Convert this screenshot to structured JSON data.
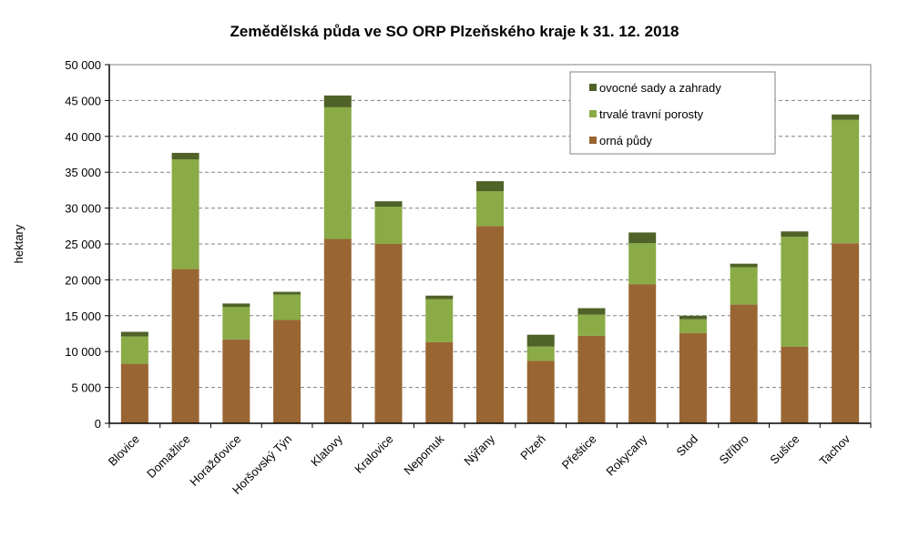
{
  "chart_data": {
    "type": "bar",
    "stacked": true,
    "title": "Zemědělská půda ve SO ORP Plzeňského kraje k 31. 12. 2018",
    "xlabel": "",
    "ylabel": "hektary",
    "ylim": [
      0,
      50000
    ],
    "yticks": [
      0,
      5000,
      10000,
      15000,
      20000,
      25000,
      30000,
      35000,
      40000,
      45000,
      50000
    ],
    "ytick_labels": [
      "0",
      "5 000",
      "10 000",
      "15 000",
      "20 000",
      "25 000",
      "30 000",
      "35 000",
      "40 000",
      "45 000",
      "50 000"
    ],
    "grid": true,
    "legend_position": "top-right",
    "categories": [
      "Blovice",
      "Domažlice",
      "Horažďovice",
      "Horšovský Týn",
      "Klatovy",
      "Kralovice",
      "Nepomuk",
      "Nýřany",
      "Plzeň",
      "Přeštice",
      "Rokycany",
      "Stod",
      "Stříbro",
      "Sušice",
      "Tachov"
    ],
    "series": [
      {
        "name": "orná půdy",
        "color": "#996633",
        "values": [
          8300,
          21500,
          11700,
          14400,
          25700,
          25000,
          11300,
          27500,
          8700,
          12200,
          19400,
          12600,
          16550,
          10700,
          25100
        ]
      },
      {
        "name": "trvalé travní porosty",
        "color": "#8aab46",
        "values": [
          3800,
          15300,
          4500,
          3550,
          18350,
          5200,
          6000,
          4850,
          2000,
          2950,
          5700,
          1900,
          5200,
          15300,
          17200
        ]
      },
      {
        "name": "ovocné sady a zahrady",
        "color": "#4f6228",
        "values": [
          650,
          900,
          500,
          380,
          1650,
          750,
          500,
          1400,
          1650,
          900,
          1500,
          500,
          500,
          750,
          750
        ]
      }
    ]
  }
}
